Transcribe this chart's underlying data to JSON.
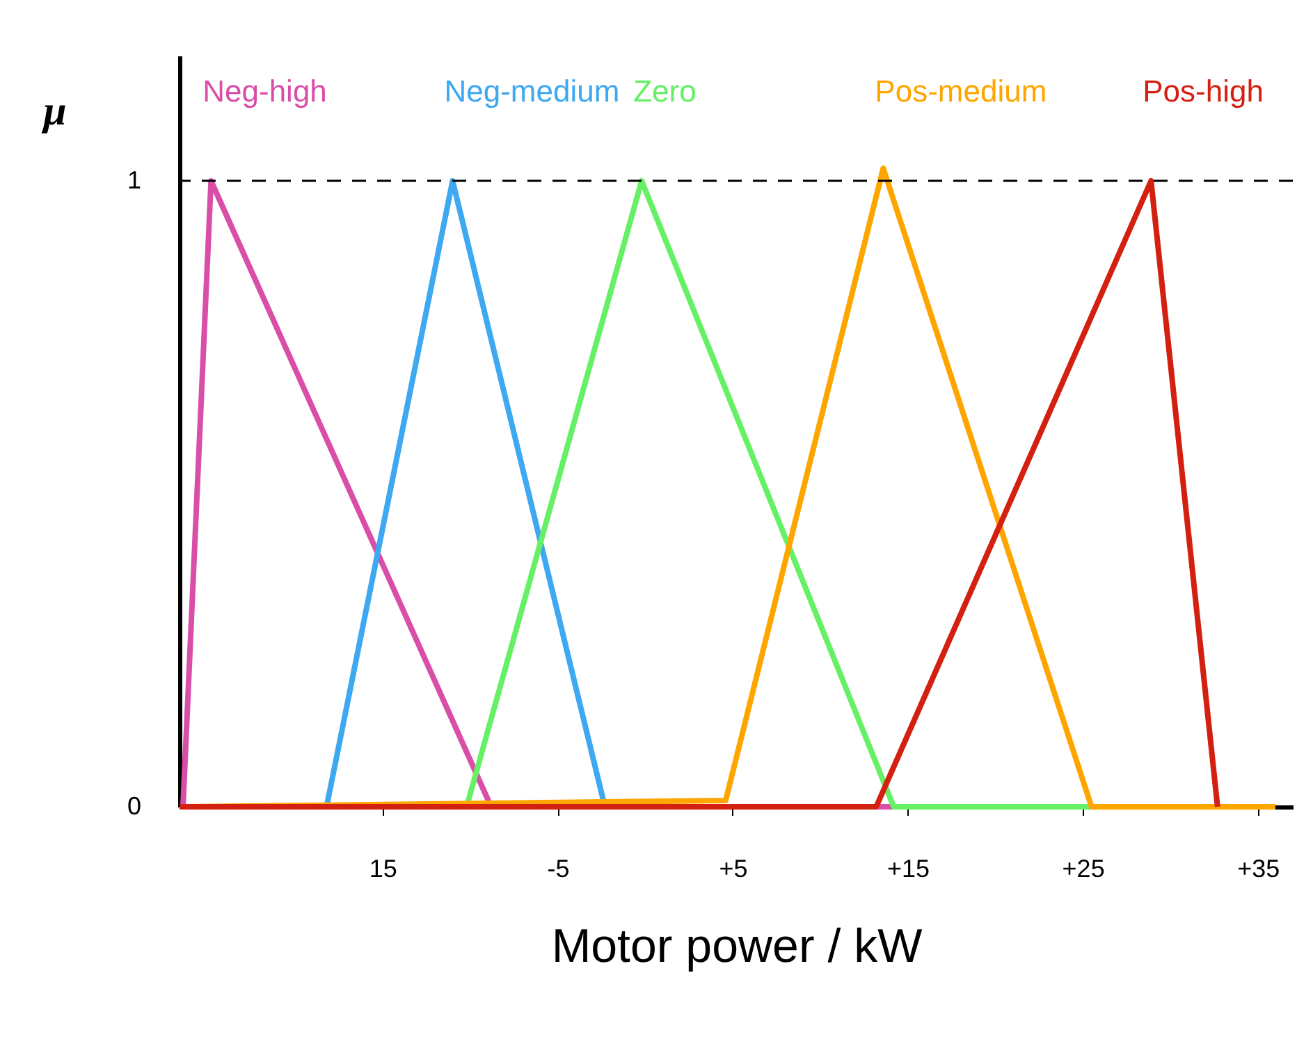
{
  "chart_data": {
    "type": "line",
    "xlabel": "Motor power / kW",
    "ylabel": "μ",
    "xlim": [
      -26.6,
      37
    ],
    "ylim": [
      0,
      1.2
    ],
    "xticks": [
      {
        "value": -15,
        "label": "15"
      },
      {
        "value": -5,
        "label": "-5"
      },
      {
        "value": 5,
        "label": "+5"
      },
      {
        "value": 15,
        "label": "+15"
      },
      {
        "value": 25,
        "label": "+25"
      },
      {
        "value": 35,
        "label": "+35"
      }
    ],
    "yticks": [
      0,
      1
    ],
    "grid": false,
    "marker": "none",
    "line_style": "solid",
    "ref_lines": [
      {
        "axis": "y",
        "value": 1,
        "color": "#000000",
        "line_style": "dashed"
      }
    ],
    "series": [
      {
        "name": "Neg-high",
        "color": "#d94fa8",
        "x": [
          -26.4,
          -24.8,
          -8.8,
          34.9
        ],
        "values": [
          0,
          1,
          0,
          0
        ]
      },
      {
        "name": "Neg-medium",
        "color": "#3ea8f0",
        "x": [
          -18.2,
          -11.0,
          -2.3
        ],
        "values": [
          0,
          1,
          0
        ]
      },
      {
        "name": "Zero",
        "color": "#66f066",
        "x": [
          -10.2,
          -0.2,
          14.2,
          36
        ],
        "values": [
          0,
          1,
          0,
          0
        ]
      },
      {
        "name": "Pos-medium",
        "color": "#ffa500",
        "x": [
          -26.4,
          4.6,
          13.6,
          25.5,
          36
        ],
        "values": [
          0,
          0.01,
          1.02,
          0,
          0
        ]
      },
      {
        "name": "Pos-high",
        "color": "#d42010",
        "x": [
          -26.6,
          13.2,
          28.9,
          32.7
        ],
        "values": [
          0,
          0,
          1,
          0
        ]
      }
    ]
  }
}
